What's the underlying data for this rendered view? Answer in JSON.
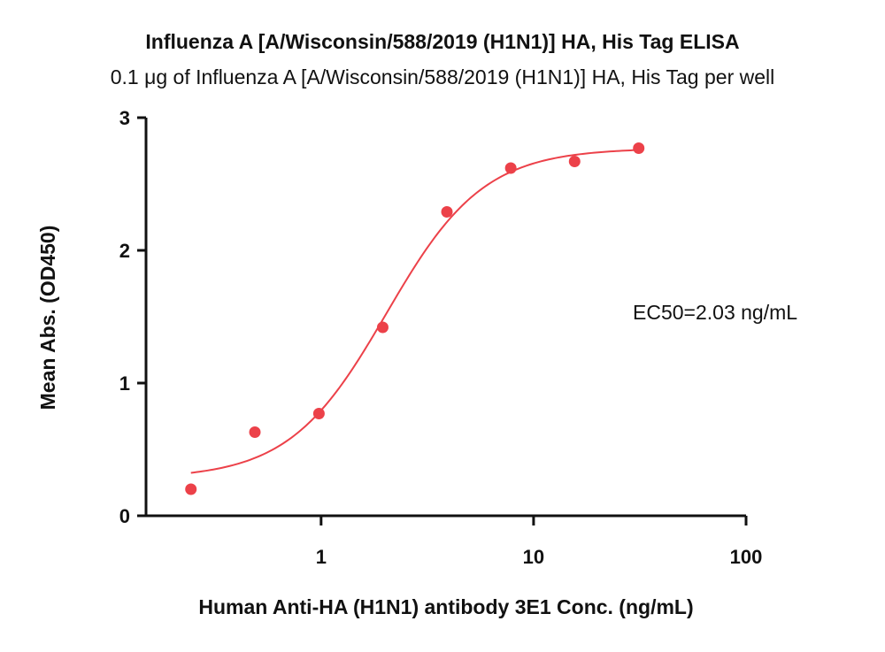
{
  "chart_data": {
    "type": "scatter",
    "title": "Influenza A [A/Wisconsin/588/2019 (H1N1)] HA, His Tag ELISA",
    "subtitle": "0.1 μg of Influenza A [A/Wisconsin/588/2019 (H1N1)] HA, His Tag per well",
    "xlabel": "Human Anti-HA (H1N1) antibody 3E1 Conc. (ng/mL)",
    "ylabel": "Mean Abs. (OD450)",
    "xscale": "log",
    "xlim": [
      0.15,
      100
    ],
    "ylim": [
      0,
      3
    ],
    "xticks": [
      1,
      10,
      100
    ],
    "xtick_labels": [
      "1",
      "10",
      "100"
    ],
    "yticks": [
      0,
      1,
      2,
      3
    ],
    "ytick_labels": [
      "0",
      "1",
      "2",
      "3"
    ],
    "grid": false,
    "legend": "none",
    "color": "#ec4149",
    "series": [
      {
        "points": [
          {
            "x": 0.244,
            "y": 0.2
          },
          {
            "x": 0.488,
            "y": 0.63
          },
          {
            "x": 0.977,
            "y": 0.77
          },
          {
            "x": 1.95,
            "y": 1.42
          },
          {
            "x": 3.91,
            "y": 2.29
          },
          {
            "x": 7.81,
            "y": 2.62
          },
          {
            "x": 15.6,
            "y": 2.67
          },
          {
            "x": 31.25,
            "y": 2.77
          }
        ],
        "fit": {
          "model": "4PL",
          "bottom": 0.28,
          "top": 2.77,
          "ec50": 2.03,
          "hill": 1.9,
          "x_range": [
            0.244,
            31.25
          ]
        }
      }
    ],
    "annotations": [
      {
        "text": "EC50=2.03 ng/mL"
      }
    ]
  }
}
